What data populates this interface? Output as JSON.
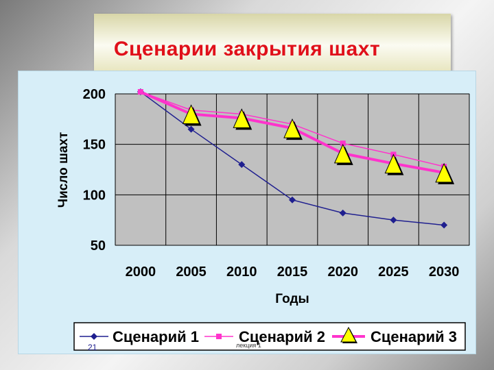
{
  "slide": {
    "title": "Сценарии закрытия шахт",
    "number": "21",
    "footer": "лекция 1"
  },
  "colors": {
    "title": "#e0101a",
    "plot_bg": "#c0c0c0",
    "panel_bg": "#d7eef8",
    "series1": "#1f1f8f",
    "series2": "#ff33cc",
    "series3": "#ff33cc",
    "marker3_fill": "#ffff00"
  },
  "chart_data": {
    "type": "line",
    "xlabel": "Годы",
    "ylabel": "Число шахт",
    "x": [
      2000,
      2005,
      2010,
      2015,
      2020,
      2025,
      2030
    ],
    "xtick_labels": [
      "2000",
      "2005",
      "2010",
      "2015",
      "2020",
      "2025",
      "2030"
    ],
    "ylim": [
      50,
      200
    ],
    "yticks": [
      50,
      100,
      150,
      200
    ],
    "ytick_labels": [
      "50",
      "100",
      "150",
      "200"
    ],
    "grid": true,
    "legend_position": "bottom",
    "series": [
      {
        "name": "Сценарий 1",
        "marker": "diamond",
        "values": [
          202,
          165,
          130,
          95,
          82,
          75,
          70
        ]
      },
      {
        "name": "Сценарий 2",
        "marker": "square",
        "values": [
          202,
          184,
          180,
          170,
          151,
          140,
          128
        ]
      },
      {
        "name": "Сценарий 3",
        "marker": "triangle",
        "values": [
          202,
          180,
          176,
          166,
          141,
          131,
          122
        ]
      }
    ]
  }
}
